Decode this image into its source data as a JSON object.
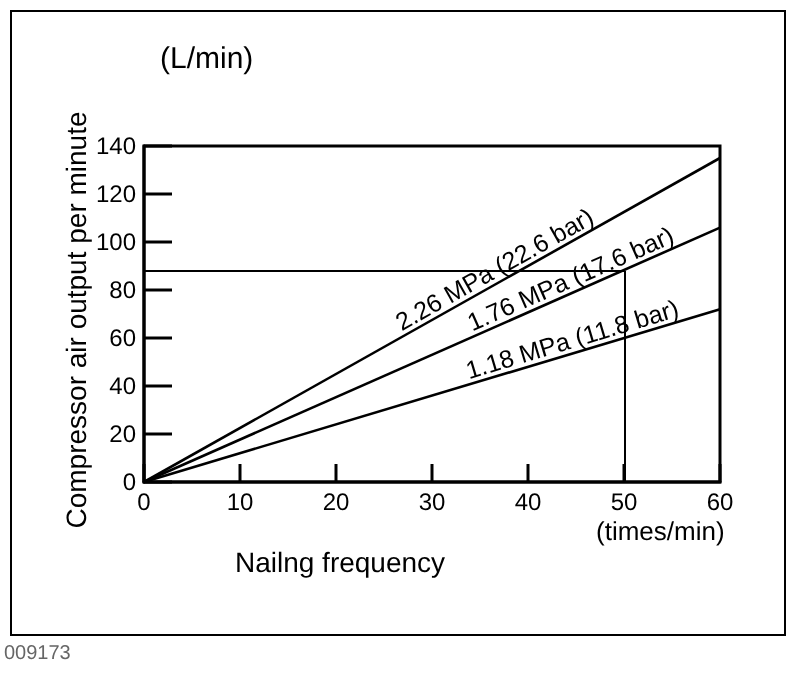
{
  "chart_data": {
    "type": "line",
    "xlabel": "Nailng frequency",
    "ylabel": "Compressor air output per minute",
    "x": [
      0,
      60
    ],
    "series": [
      {
        "name": "2.26 MPa (22.6 bar)",
        "color": "#000000",
        "values": [
          0,
          135
        ]
      },
      {
        "name": "1.76 MPa (17.6 bar)",
        "color": "#000000",
        "values": [
          0,
          106
        ]
      },
      {
        "name": "1.18 MPa (11.8 bar)",
        "color": "#000000",
        "values": [
          0,
          72
        ]
      }
    ],
    "xlim": [
      0,
      60
    ],
    "xticks": [
      0,
      10,
      20,
      30,
      40,
      50,
      60
    ],
    "ylim": [
      0,
      140
    ],
    "yticks": [
      0,
      20,
      40,
      60,
      80,
      100,
      120,
      140
    ],
    "ref_lines": [
      {
        "axis": "y",
        "value": 88
      },
      {
        "axis": "x",
        "value": 50
      }
    ],
    "annotations": [
      "(L/min)",
      "(times/min)",
      "009173"
    ],
    "grid": false,
    "legend": false,
    "marker": "none",
    "line_style": "solid"
  }
}
